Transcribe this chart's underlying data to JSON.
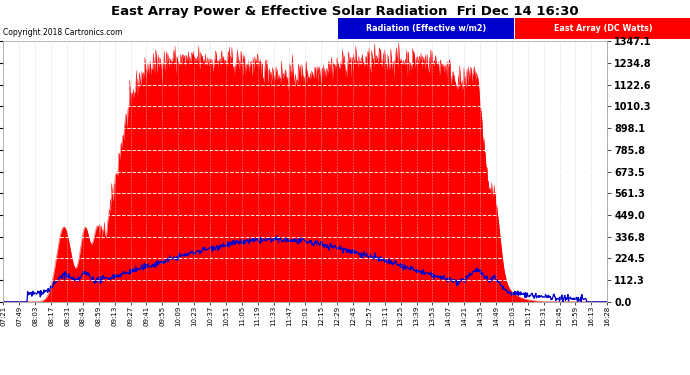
{
  "title": "East Array Power & Effective Solar Radiation  Fri Dec 14 16:30",
  "copyright": "Copyright 2018 Cartronics.com",
  "legend_radiation": "Radiation (Effective w/m2)",
  "legend_east": "East Array (DC Watts)",
  "bg_color": "#ffffff",
  "plot_bg_color": "#ffffff",
  "ymax": 1347.1,
  "ymin": 0.0,
  "yticks": [
    0.0,
    112.3,
    224.5,
    336.8,
    449.0,
    561.3,
    673.5,
    785.8,
    898.1,
    1010.3,
    1122.6,
    1234.8,
    1347.1
  ],
  "xtick_labels": [
    "07:21",
    "07:49",
    "08:03",
    "08:17",
    "08:31",
    "08:45",
    "08:59",
    "09:13",
    "09:27",
    "09:41",
    "09:55",
    "10:09",
    "10:23",
    "10:37",
    "10:51",
    "11:05",
    "11:19",
    "11:33",
    "11:47",
    "12:01",
    "12:15",
    "12:29",
    "12:43",
    "12:57",
    "13:11",
    "13:25",
    "13:39",
    "13:53",
    "14:07",
    "14:21",
    "14:35",
    "14:49",
    "15:03",
    "15:17",
    "15:31",
    "15:45",
    "15:59",
    "16:13",
    "16:28"
  ],
  "radiation_color": "#0000cc",
  "east_array_color": "#ff0000",
  "grid_color": "#cccccc",
  "title_color": "#000000",
  "text_color": "#000000"
}
